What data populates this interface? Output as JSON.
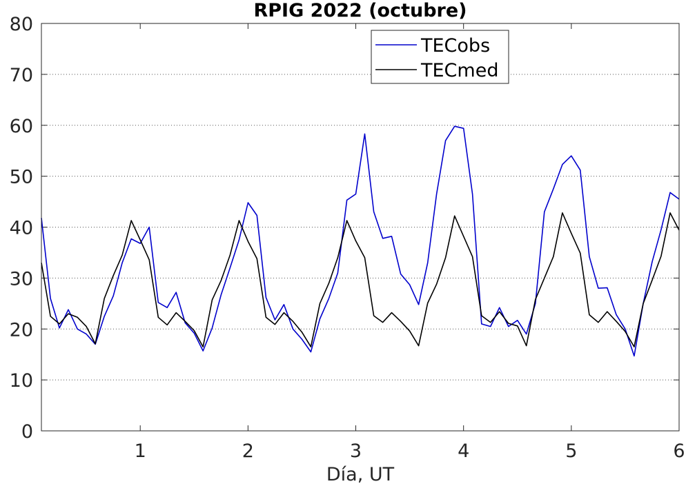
{
  "chart_data": {
    "type": "line",
    "title": "RPIG 2022 (octubre)",
    "xlabel": "Día, UT",
    "ylabel": "",
    "xlim": [
      0.083,
      6
    ],
    "ylim": [
      0,
      80
    ],
    "xticks": [
      1,
      2,
      3,
      4,
      5,
      6
    ],
    "yticks": [
      0,
      10,
      20,
      30,
      40,
      50,
      60,
      70,
      80
    ],
    "grid": "horizontal-dotted",
    "legend_position": "top-right",
    "colors": {
      "TECobs": "#0000cc",
      "TECmed": "#000000"
    },
    "x": [
      0.083,
      0.167,
      0.25,
      0.333,
      0.417,
      0.5,
      0.583,
      0.667,
      0.75,
      0.833,
      0.917,
      1.0,
      1.083,
      1.167,
      1.25,
      1.333,
      1.417,
      1.5,
      1.583,
      1.667,
      1.75,
      1.833,
      1.917,
      2.0,
      2.083,
      2.167,
      2.25,
      2.333,
      2.417,
      2.5,
      2.583,
      2.667,
      2.75,
      2.833,
      2.917,
      3.0,
      3.083,
      3.167,
      3.25,
      3.333,
      3.417,
      3.5,
      3.583,
      3.667,
      3.75,
      3.833,
      3.917,
      4.0,
      4.083,
      4.167,
      4.25,
      4.333,
      4.417,
      4.5,
      4.583,
      4.667,
      4.75,
      4.833,
      4.917,
      5.0,
      5.083,
      5.167,
      5.25,
      5.333,
      5.417,
      5.5,
      5.583,
      5.667,
      5.75,
      5.833,
      5.917,
      6.0
    ],
    "series": [
      {
        "name": "TECobs",
        "values": [
          41.8,
          26,
          20.2,
          23.8,
          20,
          19,
          17,
          22.5,
          26.5,
          33,
          37.7,
          36.8,
          40,
          25.2,
          24.2,
          27.2,
          21.2,
          19.2,
          15.7,
          20.2,
          26.7,
          32,
          37.5,
          44.8,
          42.3,
          26.2,
          21.8,
          24.8,
          20,
          18,
          15.5,
          22,
          26,
          31,
          45.3,
          46.5,
          58.3,
          43,
          37.8,
          38.2,
          30.8,
          28.7,
          24.8,
          33,
          46.5,
          57,
          59.8,
          59.4,
          46.5,
          21,
          20.5,
          24.2,
          20.5,
          21.7,
          19,
          25,
          43,
          47.5,
          52.3,
          54,
          51.2,
          34.2,
          28,
          28.1,
          22.8,
          20,
          14.7,
          25,
          33.2,
          39.5,
          46.8,
          45.5
        ]
      },
      {
        "name": "TECmed",
        "values": [
          33,
          22.5,
          21,
          23,
          22.3,
          20.5,
          17.1,
          26,
          30.5,
          34.5,
          41.3,
          37.5,
          33.6,
          22.3,
          20.8,
          23.2,
          21.5,
          19.7,
          16.5,
          25.7,
          29.5,
          34.5,
          41.3,
          37.2,
          33.8,
          22.3,
          20.9,
          23.2,
          21.5,
          19.4,
          16.5,
          25,
          29,
          34,
          41.3,
          37.3,
          34,
          22.6,
          21.3,
          23.2,
          21.5,
          19.6,
          16.7,
          25.1,
          28.8,
          34,
          42.2,
          38.2,
          34.2,
          22.6,
          21.3,
          23.4,
          21.1,
          20.6,
          16.7,
          25.8,
          30,
          34.2,
          42.8,
          38.8,
          34.9,
          22.8,
          21.3,
          23.4,
          21.5,
          19.5,
          16.5,
          25,
          29.6,
          34.3,
          42.8,
          39.4
        ]
      }
    ]
  }
}
